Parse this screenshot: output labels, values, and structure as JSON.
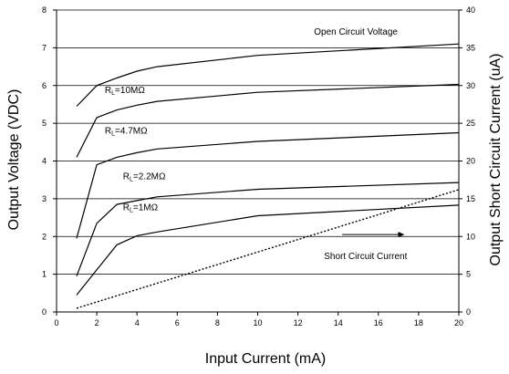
{
  "chart_data": {
    "type": "line",
    "xlabel": "Input Current (mA)",
    "ylabel": "Output Voltage (VDC)",
    "y2label": "Output Short Circuit Current (uA)",
    "xlim": [
      0,
      20
    ],
    "ylim": [
      0,
      8
    ],
    "y2lim": [
      0,
      40
    ],
    "xticks": [
      "0",
      "2",
      "4",
      "6",
      "8",
      "10",
      "12",
      "14",
      "16",
      "18",
      "20"
    ],
    "yticks": [
      "0",
      "1",
      "2",
      "3",
      "4",
      "5",
      "6",
      "7",
      "8"
    ],
    "y2ticks": [
      "0",
      "5",
      "10",
      "15",
      "20",
      "25",
      "30",
      "35",
      "40"
    ],
    "grid": "horizontal",
    "series": [
      {
        "name": "Open Circuit Voltage",
        "label_x": 12.8,
        "label_y": 7.35,
        "x": [
          1,
          2,
          3,
          4,
          5,
          10,
          20
        ],
        "y": [
          5.45,
          6.0,
          6.2,
          6.38,
          6.5,
          6.8,
          7.1
        ]
      },
      {
        "name": "RL=10MΩ",
        "label_x": 2.4,
        "label_y": 5.8,
        "x": [
          1,
          2,
          3,
          4,
          5,
          10,
          20
        ],
        "y": [
          4.1,
          5.15,
          5.35,
          5.48,
          5.58,
          5.82,
          6.03
        ]
      },
      {
        "name": "RL=4.7MΩ",
        "label_x": 2.4,
        "label_y": 4.72,
        "x": [
          1,
          2,
          3,
          4,
          5,
          10,
          20
        ],
        "y": [
          1.95,
          3.9,
          4.1,
          4.22,
          4.32,
          4.52,
          4.75
        ]
      },
      {
        "name": "RL=2.2MΩ",
        "label_x": 3.3,
        "label_y": 3.52,
        "x": [
          1,
          2,
          3,
          4,
          5,
          10,
          20
        ],
        "y": [
          0.95,
          2.35,
          2.85,
          2.95,
          3.05,
          3.25,
          3.43
        ]
      },
      {
        "name": "RL=1MΩ",
        "label_x": 3.3,
        "label_y": 2.7,
        "x": [
          1,
          2,
          3,
          4,
          5,
          10,
          20
        ],
        "y": [
          0.45,
          1.12,
          1.78,
          2.02,
          2.12,
          2.55,
          2.83
        ]
      },
      {
        "name": "Short Circuit Current",
        "axis": "right",
        "dashed": true,
        "label_x": 13.3,
        "label_y": 1.4,
        "x": [
          1,
          20
        ],
        "y": [
          0.5,
          16.2
        ]
      }
    ],
    "annotation_arrow": {
      "x1": 14.2,
      "x2": 17.3,
      "y": 2.05
    }
  }
}
